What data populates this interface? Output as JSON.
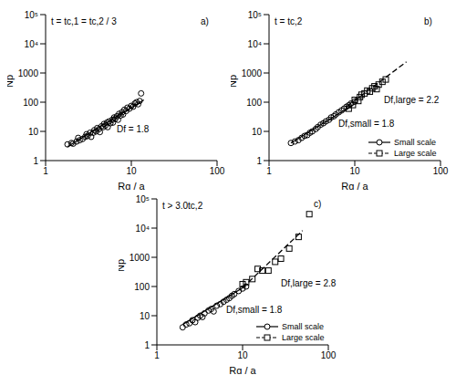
{
  "chart_data": [
    {
      "type": "scatter",
      "title": "t = tc,1 = tc,2 / 3",
      "annotations": [
        "a)",
        "Df = 1.8"
      ],
      "x_label": "Rg / a",
      "y_label": "Np",
      "log": true,
      "xlim": [
        1,
        100
      ],
      "xticks": [
        1,
        10,
        100
      ],
      "ylim": [
        1,
        100000
      ],
      "yticks": [
        1,
        10,
        100,
        1000,
        {
          "value": 10000,
          "label": "10⁴"
        },
        {
          "value": 100000,
          "label": "10⁵"
        }
      ],
      "series": [
        {
          "color": "#000000",
          "marker": "circle",
          "line_style": "solid",
          "x": [
            1.8,
            2.0,
            2.1,
            2.3,
            2.5,
            2.4,
            2.7,
            2.9,
            3.0,
            3.1,
            3.3,
            3.4,
            3.6,
            3.7,
            3.9,
            4.0,
            4.2,
            4.3,
            4.5,
            4.7,
            4.8,
            5.0,
            5.2,
            5.3,
            5.5,
            5.7,
            6.0,
            6.1,
            6.3,
            6.5,
            6.8,
            7.0,
            7.2,
            7.5,
            7.8,
            8.0,
            8.3,
            8.7,
            9.0,
            9.5,
            10,
            10.5,
            11,
            11.5,
            12,
            13,
            12.5
          ],
          "values": [
            3.6,
            4,
            3.8,
            4.5,
            5,
            6,
            5.5,
            6.5,
            8,
            7,
            9,
            6.5,
            9,
            11,
            10,
            13,
            12,
            9.5,
            15,
            14,
            18,
            16,
            20,
            14,
            22,
            19,
            25,
            20,
            30,
            27,
            33,
            25,
            40,
            35,
            45,
            38,
            55,
            50,
            65,
            60,
            75,
            70,
            90,
            100,
            85,
            200,
            110
          ],
          "fit": {
            "x": [
              1.8,
              14
            ],
            "values": [
              3,
              120
            ]
          }
        }
      ]
    },
    {
      "type": "scatter",
      "title": "t = tc,2",
      "annotations": [
        "b)",
        "Df,small = 1.8",
        "Df,large = 2.2"
      ],
      "x_label": "Rg / a",
      "y_label": "Np",
      "log": true,
      "legend": "lower right",
      "xlim": [
        1,
        100
      ],
      "xticks": [
        1,
        10,
        100
      ],
      "ylim": [
        1,
        100000
      ],
      "yticks": [
        1,
        10,
        100,
        1000,
        {
          "value": 10000,
          "label": "10⁴"
        },
        {
          "value": 100000,
          "label": "10⁵"
        }
      ],
      "series": [
        {
          "name": "Small scale",
          "color": "#000000",
          "marker": "circle",
          "line_style": "solid",
          "x": [
            1.8,
            2.0,
            2.2,
            2.4,
            2.6,
            2.8,
            3.0,
            3.2,
            3.5,
            3.7,
            4.0,
            4.3,
            4.6,
            5.0,
            5.3,
            5.7,
            6.0,
            6.5,
            7.0,
            7.5,
            8.0,
            8.5,
            9.0,
            10
          ],
          "values": [
            4,
            4.5,
            5,
            6,
            7,
            7.5,
            9,
            10,
            12,
            14,
            17,
            19,
            22,
            25,
            30,
            33,
            38,
            45,
            52,
            60,
            70,
            78,
            90,
            105
          ],
          "fit": {
            "x": [
              1.8,
              10
            ],
            "values": [
              4,
              88
            ]
          }
        },
        {
          "name": "Large scale",
          "color": "#000000",
          "marker": "square",
          "line_style": "dashed",
          "x": [
            8.5,
            9.5,
            10,
            11,
            11.5,
            12,
            13,
            14,
            15,
            16,
            17,
            18,
            19,
            21,
            23
          ],
          "values": [
            60,
            80,
            120,
            110,
            150,
            180,
            200,
            250,
            230,
            300,
            350,
            280,
            400,
            500,
            600
          ],
          "fit": {
            "x": [
              8,
              40
            ],
            "values": [
              70,
              2400
            ]
          }
        }
      ]
    },
    {
      "type": "scatter",
      "title": "t > 3.0tc,2",
      "annotations": [
        "c)",
        "Df,small = 1.8",
        "Df,large = 2.8"
      ],
      "x_label": "Rg / a",
      "y_label": "Np",
      "log": true,
      "legend": "lower right",
      "xlim": [
        1,
        100
      ],
      "xticks": [
        1,
        10,
        100
      ],
      "ylim": [
        1,
        100000
      ],
      "yticks": [
        1,
        10,
        100,
        1000,
        {
          "value": 10000,
          "label": "10⁴"
        },
        {
          "value": 100000,
          "label": "10⁵"
        }
      ],
      "series": [
        {
          "name": "Small scale",
          "color": "#000000",
          "marker": "circle",
          "line_style": "solid",
          "x": [
            2,
            2.2,
            2.4,
            2.6,
            2.8,
            3,
            3.2,
            3.4,
            3.6,
            4,
            4.3,
            4.6,
            5,
            5.5,
            6,
            6.5,
            7,
            7.5,
            8,
            9,
            10,
            11
          ],
          "values": [
            4,
            5,
            5.5,
            7,
            6,
            8.5,
            10,
            9,
            12,
            15,
            17,
            14,
            22,
            25,
            30,
            35,
            40,
            48,
            55,
            70,
            85,
            100
          ],
          "fit": {
            "x": [
              2,
              10
            ],
            "values": [
              5,
              90
            ]
          }
        },
        {
          "name": "Large scale",
          "color": "#000000",
          "marker": "square",
          "line_style": "dashed",
          "x": [
            10,
            11,
            13,
            15,
            17,
            20,
            24,
            28,
            35,
            45,
            60
          ],
          "values": [
            120,
            140,
            180,
            400,
            350,
            350,
            700,
            900,
            2000,
            5000,
            30000
          ],
          "fit": {
            "x": [
              10,
              50
            ],
            "values": [
              90,
              8200
            ]
          }
        }
      ]
    }
  ]
}
